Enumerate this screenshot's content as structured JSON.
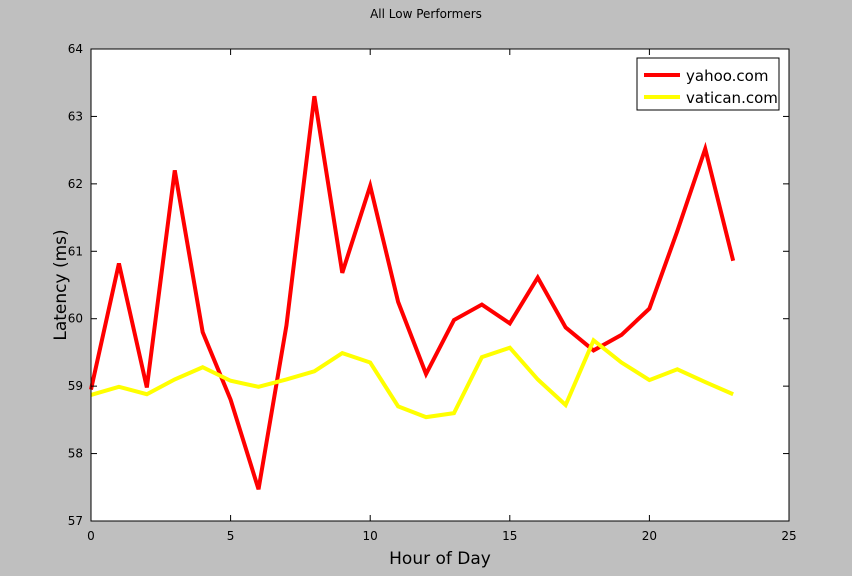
{
  "chart_data": {
    "type": "line",
    "title": "All Low Performers",
    "xlabel": "Hour of Day",
    "ylabel": "Latency (ms)",
    "xlim": [
      0,
      25
    ],
    "ylim": [
      57,
      64
    ],
    "xticks": [
      0,
      5,
      10,
      15,
      20,
      25
    ],
    "yticks": [
      57,
      58,
      59,
      60,
      61,
      62,
      63,
      64
    ],
    "grid": false,
    "legend_position": "top-right",
    "x": [
      0,
      1,
      2,
      3,
      4,
      5,
      6,
      7,
      8,
      9,
      10,
      11,
      12,
      13,
      14,
      15,
      16,
      17,
      18,
      19,
      20,
      21,
      22,
      23
    ],
    "series": [
      {
        "name": "yahoo.com",
        "color": "#ff0000",
        "values": [
          58.95,
          60.82,
          58.98,
          62.2,
          59.8,
          58.8,
          57.47,
          59.9,
          63.3,
          60.68,
          61.97,
          60.25,
          59.18,
          59.98,
          60.21,
          59.93,
          60.61,
          59.87,
          59.53,
          59.76,
          60.15,
          61.3,
          62.52,
          60.86
        ]
      },
      {
        "name": "vatican.com",
        "color": "#ffff00",
        "values": [
          58.87,
          58.99,
          58.88,
          59.1,
          59.28,
          59.08,
          58.99,
          59.1,
          59.22,
          59.49,
          59.35,
          58.7,
          58.54,
          58.6,
          59.43,
          59.57,
          59.1,
          58.72,
          59.68,
          59.35,
          59.09,
          59.25,
          59.06,
          58.88
        ]
      }
    ]
  }
}
